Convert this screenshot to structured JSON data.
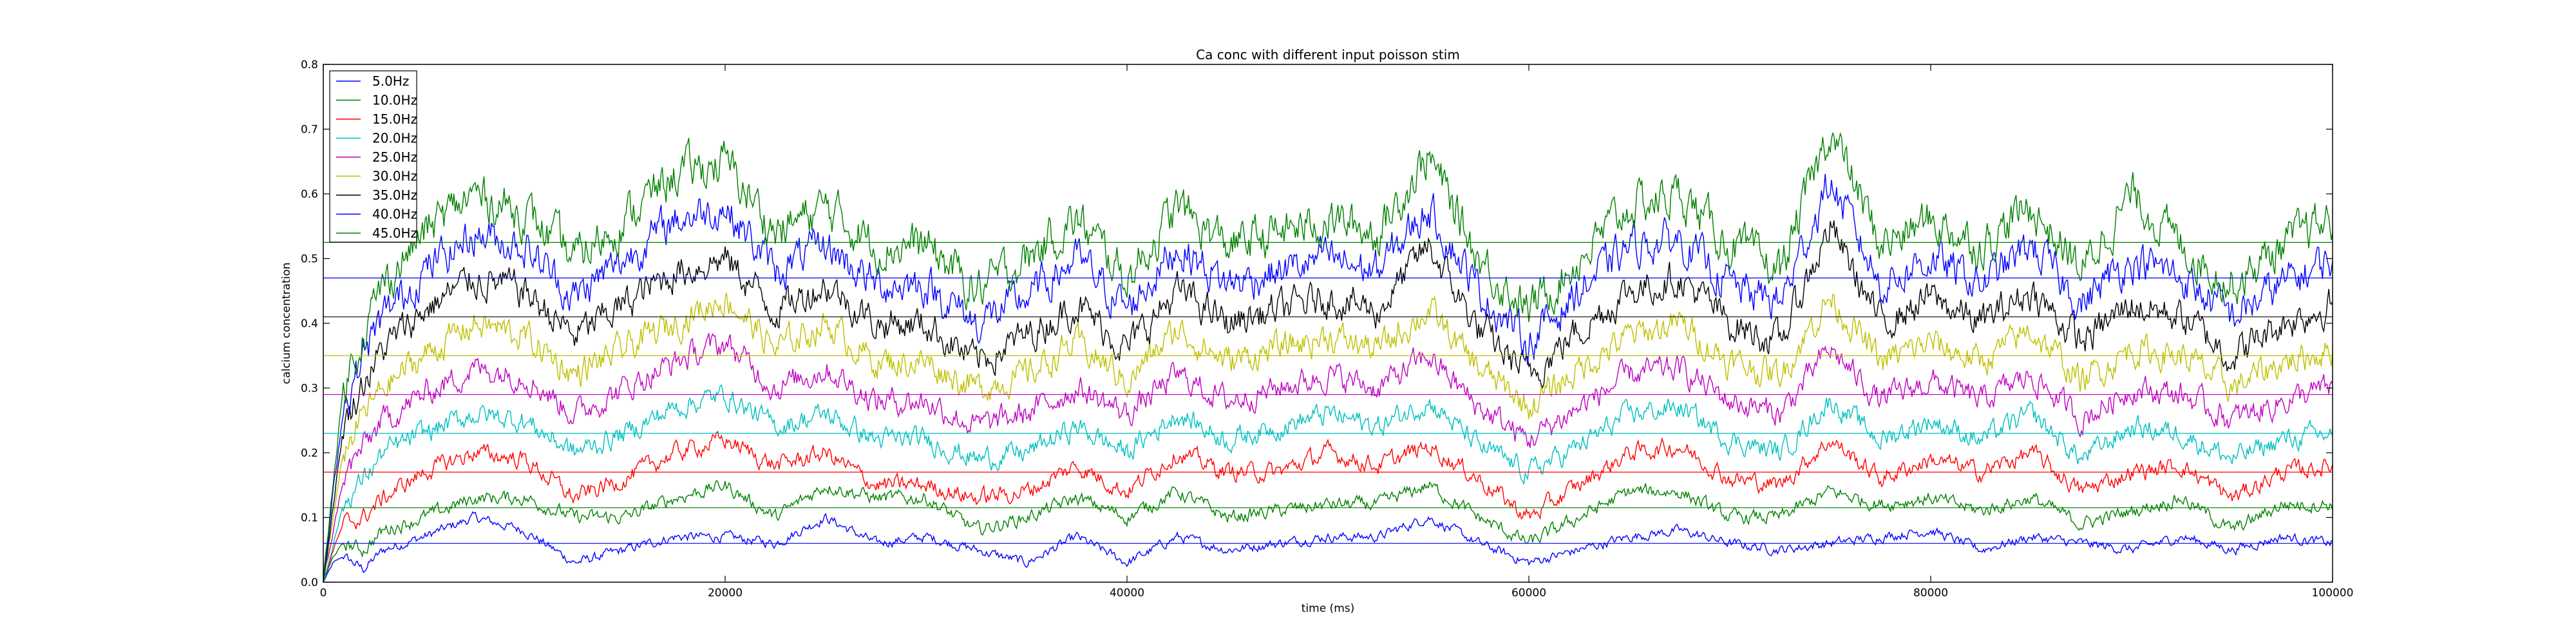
{
  "chart_data": {
    "type": "line",
    "title": "Ca conc with different input poisson stim",
    "xlabel": "time (ms)",
    "ylabel": "calcium concentration",
    "xlim": [
      0,
      100000
    ],
    "ylim": [
      0.0,
      0.8
    ],
    "xticks": [
      0,
      20000,
      40000,
      60000,
      80000,
      100000
    ],
    "xtick_labels": [
      "0",
      "20000",
      "40000",
      "60000",
      "80000",
      "100000"
    ],
    "yticks": [
      0.0,
      0.1,
      0.2,
      0.3,
      0.4,
      0.5,
      0.6,
      0.7,
      0.8
    ],
    "ytick_labels": [
      "0.0",
      "0.1",
      "0.2",
      "0.3",
      "0.4",
      "0.5",
      "0.6",
      "0.7",
      "0.8"
    ],
    "grid": false,
    "legend_position": "top-left",
    "x": [
      0,
      500,
      1000,
      2000,
      3000,
      5000,
      7500,
      10000,
      12500,
      15000,
      17500,
      20000,
      22500,
      25000,
      27500,
      30000,
      32500,
      35000,
      37500,
      40000,
      42500,
      45000,
      47500,
      50000,
      52500,
      55000,
      57500,
      60000,
      62500,
      65000,
      67500,
      70000,
      72500,
      75000,
      77500,
      80000,
      82500,
      85000,
      87500,
      90000,
      92500,
      95000,
      97500,
      100000
    ],
    "series": [
      {
        "name": "5.0Hz",
        "color": "#0000ff",
        "mean": 0.06,
        "values": [
          0.0,
          0.03,
          0.04,
          0.02,
          0.05,
          0.07,
          0.1,
          0.08,
          0.03,
          0.05,
          0.07,
          0.07,
          0.06,
          0.1,
          0.06,
          0.07,
          0.05,
          0.03,
          0.07,
          0.03,
          0.07,
          0.05,
          0.06,
          0.07,
          0.07,
          0.1,
          0.06,
          0.03,
          0.05,
          0.07,
          0.08,
          0.06,
          0.05,
          0.06,
          0.07,
          0.08,
          0.05,
          0.07,
          0.06,
          0.05,
          0.07,
          0.05,
          0.07,
          0.06
        ]
      },
      {
        "name": "10.0Hz",
        "color": "#008000",
        "mean": 0.115,
        "values": [
          0.0,
          0.04,
          0.06,
          0.05,
          0.08,
          0.1,
          0.13,
          0.13,
          0.1,
          0.1,
          0.13,
          0.15,
          0.1,
          0.15,
          0.13,
          0.13,
          0.08,
          0.1,
          0.13,
          0.1,
          0.14,
          0.1,
          0.11,
          0.12,
          0.12,
          0.15,
          0.1,
          0.06,
          0.1,
          0.14,
          0.14,
          0.1,
          0.1,
          0.14,
          0.12,
          0.13,
          0.11,
          0.13,
          0.09,
          0.11,
          0.13,
          0.08,
          0.12,
          0.12
        ]
      },
      {
        "name": "15.0Hz",
        "color": "#ff0000",
        "mean": 0.17,
        "values": [
          0.0,
          0.05,
          0.09,
          0.1,
          0.13,
          0.17,
          0.2,
          0.19,
          0.13,
          0.16,
          0.2,
          0.22,
          0.18,
          0.2,
          0.15,
          0.15,
          0.13,
          0.14,
          0.18,
          0.14,
          0.2,
          0.17,
          0.17,
          0.2,
          0.18,
          0.21,
          0.16,
          0.1,
          0.15,
          0.2,
          0.21,
          0.16,
          0.15,
          0.22,
          0.16,
          0.19,
          0.17,
          0.2,
          0.14,
          0.17,
          0.18,
          0.13,
          0.17,
          0.18
        ]
      },
      {
        "name": "20.0Hz",
        "color": "#00bfbf",
        "mean": 0.23,
        "values": [
          0.0,
          0.06,
          0.12,
          0.16,
          0.2,
          0.23,
          0.26,
          0.25,
          0.2,
          0.23,
          0.27,
          0.29,
          0.24,
          0.26,
          0.22,
          0.22,
          0.19,
          0.2,
          0.24,
          0.2,
          0.26,
          0.22,
          0.24,
          0.26,
          0.24,
          0.28,
          0.21,
          0.17,
          0.21,
          0.26,
          0.27,
          0.22,
          0.2,
          0.28,
          0.22,
          0.25,
          0.22,
          0.26,
          0.19,
          0.24,
          0.23,
          0.19,
          0.22,
          0.23
        ]
      },
      {
        "name": "25.0Hz",
        "color": "#bf00bf",
        "mean": 0.29,
        "values": [
          0.0,
          0.08,
          0.16,
          0.21,
          0.25,
          0.29,
          0.33,
          0.32,
          0.26,
          0.3,
          0.34,
          0.37,
          0.3,
          0.33,
          0.28,
          0.28,
          0.24,
          0.26,
          0.3,
          0.26,
          0.32,
          0.28,
          0.3,
          0.32,
          0.3,
          0.35,
          0.27,
          0.22,
          0.27,
          0.32,
          0.33,
          0.28,
          0.26,
          0.36,
          0.28,
          0.31,
          0.28,
          0.32,
          0.25,
          0.3,
          0.29,
          0.25,
          0.28,
          0.3
        ]
      },
      {
        "name": "30.0Hz",
        "color": "#bfbf00",
        "mean": 0.35,
        "values": [
          0.0,
          0.1,
          0.2,
          0.26,
          0.3,
          0.35,
          0.4,
          0.38,
          0.32,
          0.36,
          0.4,
          0.44,
          0.36,
          0.4,
          0.34,
          0.34,
          0.3,
          0.32,
          0.37,
          0.31,
          0.39,
          0.34,
          0.36,
          0.38,
          0.36,
          0.42,
          0.33,
          0.27,
          0.33,
          0.38,
          0.4,
          0.34,
          0.32,
          0.44,
          0.34,
          0.37,
          0.34,
          0.39,
          0.31,
          0.36,
          0.35,
          0.3,
          0.34,
          0.36
        ]
      },
      {
        "name": "35.0Hz",
        "color": "#000000",
        "mean": 0.41,
        "values": [
          0.0,
          0.12,
          0.24,
          0.31,
          0.36,
          0.42,
          0.47,
          0.45,
          0.38,
          0.43,
          0.48,
          0.5,
          0.42,
          0.46,
          0.4,
          0.4,
          0.34,
          0.38,
          0.43,
          0.36,
          0.45,
          0.4,
          0.42,
          0.44,
          0.42,
          0.52,
          0.39,
          0.32,
          0.39,
          0.45,
          0.47,
          0.4,
          0.37,
          0.55,
          0.4,
          0.44,
          0.4,
          0.45,
          0.37,
          0.43,
          0.41,
          0.35,
          0.4,
          0.43
        ]
      },
      {
        "name": "40.0Hz",
        "color": "#0000ff",
        "mean": 0.47,
        "values": [
          0.0,
          0.14,
          0.27,
          0.35,
          0.41,
          0.48,
          0.54,
          0.52,
          0.44,
          0.5,
          0.56,
          0.58,
          0.48,
          0.52,
          0.46,
          0.46,
          0.4,
          0.44,
          0.5,
          0.42,
          0.52,
          0.46,
          0.48,
          0.5,
          0.48,
          0.58,
          0.45,
          0.37,
          0.45,
          0.52,
          0.53,
          0.46,
          0.43,
          0.62,
          0.46,
          0.5,
          0.46,
          0.52,
          0.43,
          0.5,
          0.47,
          0.41,
          0.46,
          0.5
        ]
      },
      {
        "name": "45.0Hz",
        "color": "#008000",
        "mean": 0.525,
        "values": [
          0.0,
          0.16,
          0.3,
          0.39,
          0.46,
          0.54,
          0.6,
          0.57,
          0.5,
          0.56,
          0.63,
          0.65,
          0.54,
          0.58,
          0.52,
          0.52,
          0.45,
          0.5,
          0.56,
          0.47,
          0.58,
          0.52,
          0.54,
          0.56,
          0.54,
          0.66,
          0.5,
          0.42,
          0.5,
          0.58,
          0.6,
          0.52,
          0.48,
          0.7,
          0.52,
          0.56,
          0.52,
          0.58,
          0.48,
          0.6,
          0.52,
          0.46,
          0.52,
          0.56
        ]
      }
    ]
  }
}
